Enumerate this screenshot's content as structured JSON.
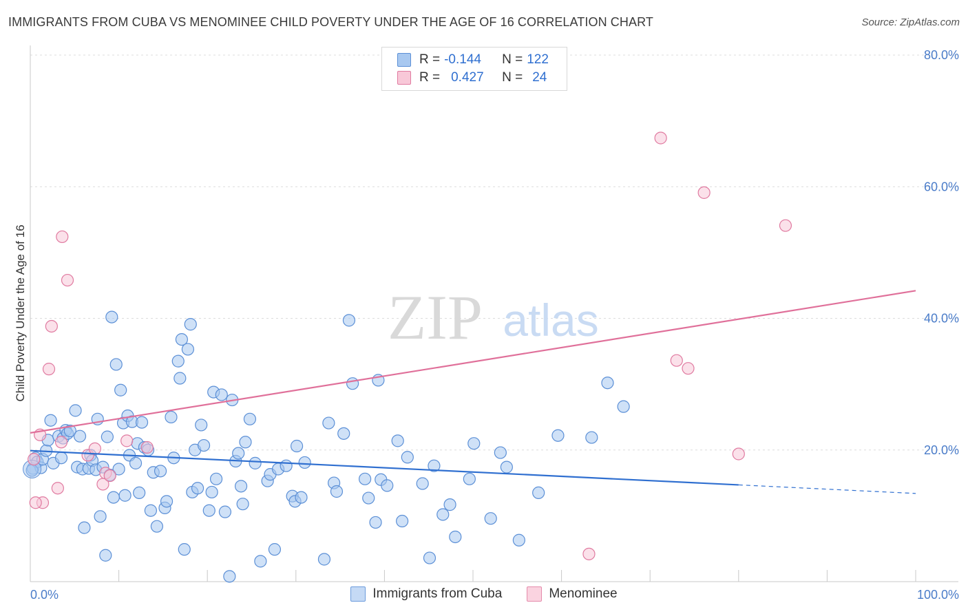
{
  "title": "IMMIGRANTS FROM CUBA VS MENOMINEE CHILD POVERTY UNDER THE AGE OF 16 CORRELATION CHART",
  "source": "Source: ZipAtlas.com",
  "watermark": {
    "zip": "ZIP",
    "atlas": "atlas"
  },
  "legend": {
    "rows": [
      {
        "r_label": "R =",
        "r_value": "-0.144",
        "n_label": "N =",
        "n_value": "122",
        "color": "#a8c8f0",
        "border": "#5b8fd6"
      },
      {
        "r_label": "R =",
        "r_value": "0.427",
        "n_label": "N =",
        "n_value": "24",
        "color": "#f8c8d8",
        "border": "#e07aa0"
      }
    ]
  },
  "bottom_legend": [
    "Immigrants from Cuba",
    "Menominee"
  ],
  "chart_data": {
    "type": "scatter",
    "title": "IMMIGRANTS FROM CUBA VS MENOMINEE CHILD POVERTY UNDER THE AGE OF 16 CORRELATION CHART",
    "xlabel": "",
    "ylabel": "Child Poverty Under the Age of 16",
    "xlim": [
      0,
      100
    ],
    "ylim": [
      0,
      80
    ],
    "x_ticks": [
      "0.0%",
      "100.0%"
    ],
    "y_ticks": [
      "20.0%",
      "40.0%",
      "60.0%",
      "80.0%"
    ],
    "grid": true,
    "series": [
      {
        "name": "Immigrants from Cuba",
        "color": "#a8c8f0",
        "stroke": "#5b8fd6",
        "trend": {
          "x0": 0,
          "y0": 19.9,
          "x1": 80,
          "y1": 14.7,
          "dash_to": 100,
          "dash_y": 13.4,
          "color": "#2f6fd0"
        },
        "points": [
          [
            0.3,
            17.2
          ],
          [
            0.6,
            18.8
          ],
          [
            0.8,
            18.2
          ],
          [
            1.2,
            17.3
          ],
          [
            1.4,
            18.6
          ],
          [
            1.8,
            19.9
          ],
          [
            2.0,
            21.5
          ],
          [
            2.3,
            24.5
          ],
          [
            2.6,
            18.0
          ],
          [
            3.2,
            22.1
          ],
          [
            3.5,
            18.8
          ],
          [
            3.7,
            21.8
          ],
          [
            4.0,
            23.0
          ],
          [
            4.2,
            22.5
          ],
          [
            4.5,
            22.9
          ],
          [
            5.1,
            26.0
          ],
          [
            5.3,
            17.4
          ],
          [
            5.6,
            22.1
          ],
          [
            5.9,
            17.1
          ],
          [
            6.1,
            8.2
          ],
          [
            6.6,
            17.2
          ],
          [
            6.8,
            19.2
          ],
          [
            7.0,
            18.4
          ],
          [
            7.4,
            17.0
          ],
          [
            7.6,
            24.7
          ],
          [
            7.9,
            9.9
          ],
          [
            8.2,
            17.4
          ],
          [
            8.5,
            4.0
          ],
          [
            8.7,
            22.0
          ],
          [
            9.0,
            16.2
          ],
          [
            9.2,
            40.2
          ],
          [
            9.4,
            12.8
          ],
          [
            9.7,
            33.0
          ],
          [
            10.0,
            17.1
          ],
          [
            10.2,
            29.1
          ],
          [
            10.5,
            24.1
          ],
          [
            10.7,
            13.1
          ],
          [
            11.0,
            25.2
          ],
          [
            11.2,
            19.2
          ],
          [
            11.5,
            24.3
          ],
          [
            11.9,
            18.0
          ],
          [
            12.1,
            21.0
          ],
          [
            12.3,
            13.5
          ],
          [
            12.6,
            24.2
          ],
          [
            12.9,
            20.4
          ],
          [
            13.3,
            20.0
          ],
          [
            13.6,
            10.8
          ],
          [
            13.9,
            16.6
          ],
          [
            14.3,
            8.4
          ],
          [
            14.7,
            16.8
          ],
          [
            15.2,
            11.2
          ],
          [
            15.4,
            12.2
          ],
          [
            15.9,
            25.0
          ],
          [
            16.2,
            18.8
          ],
          [
            16.7,
            33.5
          ],
          [
            16.9,
            30.9
          ],
          [
            17.1,
            36.8
          ],
          [
            17.4,
            4.9
          ],
          [
            17.8,
            35.3
          ],
          [
            18.1,
            39.1
          ],
          [
            18.3,
            13.6
          ],
          [
            18.6,
            20.0
          ],
          [
            18.9,
            14.2
          ],
          [
            19.3,
            23.8
          ],
          [
            19.6,
            20.7
          ],
          [
            20.2,
            10.8
          ],
          [
            20.5,
            13.6
          ],
          [
            20.7,
            28.8
          ],
          [
            21.0,
            15.6
          ],
          [
            21.6,
            28.4
          ],
          [
            22.0,
            10.6
          ],
          [
            22.8,
            27.6
          ],
          [
            22.5,
            0.8
          ],
          [
            23.2,
            18.3
          ],
          [
            23.5,
            19.5
          ],
          [
            23.8,
            14.5
          ],
          [
            24.0,
            11.8
          ],
          [
            24.3,
            21.2
          ],
          [
            24.8,
            24.7
          ],
          [
            25.4,
            18.0
          ],
          [
            26.0,
            3.1
          ],
          [
            26.8,
            15.3
          ],
          [
            27.1,
            16.3
          ],
          [
            27.6,
            4.9
          ],
          [
            28.0,
            17.1
          ],
          [
            28.9,
            17.6
          ],
          [
            29.6,
            13.0
          ],
          [
            29.9,
            12.2
          ],
          [
            30.1,
            20.6
          ],
          [
            30.6,
            12.8
          ],
          [
            31.0,
            18.1
          ],
          [
            33.2,
            3.4
          ],
          [
            33.7,
            24.1
          ],
          [
            34.3,
            15.0
          ],
          [
            34.6,
            13.7
          ],
          [
            35.4,
            22.5
          ],
          [
            36.0,
            39.7
          ],
          [
            36.4,
            30.1
          ],
          [
            37.8,
            15.6
          ],
          [
            38.2,
            12.7
          ],
          [
            39.0,
            9.0
          ],
          [
            39.3,
            30.6
          ],
          [
            39.6,
            15.5
          ],
          [
            40.3,
            14.6
          ],
          [
            41.5,
            21.4
          ],
          [
            42.0,
            9.2
          ],
          [
            42.6,
            18.9
          ],
          [
            44.3,
            14.9
          ],
          [
            45.1,
            3.6
          ],
          [
            45.6,
            17.6
          ],
          [
            46.6,
            10.2
          ],
          [
            47.4,
            11.7
          ],
          [
            48.0,
            6.8
          ],
          [
            49.6,
            15.6
          ],
          [
            50.1,
            21.0
          ],
          [
            52.0,
            9.6
          ],
          [
            53.1,
            19.6
          ],
          [
            53.8,
            17.4
          ],
          [
            55.2,
            6.3
          ],
          [
            57.4,
            13.5
          ],
          [
            59.6,
            22.2
          ],
          [
            63.4,
            21.9
          ],
          [
            65.2,
            30.2
          ],
          [
            67.0,
            26.6
          ],
          [
            0.2,
            16.9
          ]
        ]
      },
      {
        "name": "Menominee",
        "color": "#f8c8d8",
        "stroke": "#e07aa0",
        "trend": {
          "x0": 0,
          "y0": 22.6,
          "x1": 100,
          "y1": 44.2,
          "color": "#e0709a"
        },
        "points": [
          [
            0.4,
            18.6
          ],
          [
            1.1,
            22.3
          ],
          [
            1.4,
            12.0
          ],
          [
            2.1,
            32.3
          ],
          [
            2.4,
            38.8
          ],
          [
            3.1,
            14.2
          ],
          [
            3.5,
            21.2
          ],
          [
            3.6,
            52.4
          ],
          [
            4.2,
            45.8
          ],
          [
            6.5,
            19.2
          ],
          [
            7.3,
            20.2
          ],
          [
            8.2,
            14.8
          ],
          [
            8.5,
            16.5
          ],
          [
            9.0,
            16.1
          ],
          [
            10.9,
            21.4
          ],
          [
            13.2,
            20.4
          ],
          [
            63.1,
            4.2
          ],
          [
            71.2,
            67.4
          ],
          [
            73.0,
            33.6
          ],
          [
            74.3,
            32.4
          ],
          [
            76.1,
            59.1
          ],
          [
            80.0,
            19.4
          ],
          [
            85.3,
            54.1
          ],
          [
            0.6,
            12.0
          ]
        ]
      }
    ]
  }
}
